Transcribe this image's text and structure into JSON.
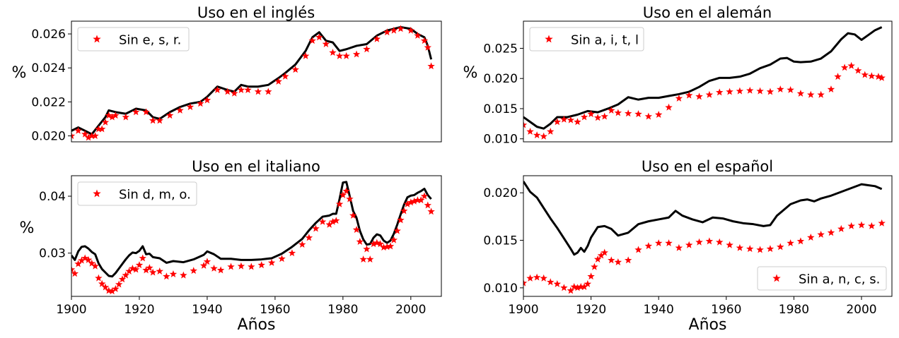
{
  "chart_data": [
    {
      "type": "line",
      "title": "Uso en el inglés",
      "ylabel": "%",
      "xlabel": "",
      "xlim": [
        1900,
        2009
      ],
      "ylim": [
        0.01965,
        0.02675
      ],
      "yticks": [
        0.02,
        0.022,
        0.024,
        0.026
      ],
      "ytick_labels": [
        "0.020",
        "0.022",
        "0.024",
        "0.026"
      ],
      "xticks": [],
      "legend": {
        "position": "top-left"
      },
      "series": [
        {
          "name": "",
          "style": "line",
          "color": "#000000",
          "x": [
            1900,
            1902,
            1904,
            1906,
            1908,
            1910,
            1911,
            1913,
            1916,
            1919,
            1922,
            1924,
            1926,
            1929,
            1932,
            1935,
            1938,
            1940,
            1943,
            1946,
            1948,
            1950,
            1952,
            1955,
            1958,
            1961,
            1963,
            1966,
            1969,
            1971,
            1973,
            1975,
            1977,
            1979,
            1981,
            1984,
            1987,
            1990,
            1993,
            1995,
            1997,
            2000,
            2002,
            2004,
            2005,
            2006
          ],
          "y": [
            0.0203,
            0.0205,
            0.0203,
            0.0201,
            0.0206,
            0.0211,
            0.0215,
            0.0214,
            0.0213,
            0.0216,
            0.0215,
            0.0211,
            0.021,
            0.0214,
            0.0217,
            0.0219,
            0.022,
            0.0223,
            0.0229,
            0.0227,
            0.0226,
            0.023,
            0.0229,
            0.0229,
            0.023,
            0.0234,
            0.0237,
            0.0242,
            0.025,
            0.0258,
            0.0261,
            0.0256,
            0.0255,
            0.025,
            0.0251,
            0.0253,
            0.0254,
            0.0259,
            0.0262,
            0.0263,
            0.0264,
            0.0263,
            0.026,
            0.0258,
            0.0253,
            0.0245
          ]
        },
        {
          "name": "Sin e, s, r.",
          "style": "star",
          "color": "#ff0000",
          "x": [
            1900,
            1902,
            1904,
            1905,
            1906,
            1907,
            1908,
            1909,
            1910,
            1911,
            1912,
            1913,
            1916,
            1919,
            1922,
            1924,
            1926,
            1929,
            1932,
            1935,
            1938,
            1940,
            1943,
            1946,
            1948,
            1950,
            1952,
            1955,
            1958,
            1961,
            1963,
            1966,
            1969,
            1971,
            1973,
            1975,
            1977,
            1979,
            1981,
            1984,
            1987,
            1990,
            1993,
            1995,
            1997,
            2000,
            2002,
            2004,
            2005,
            2006
          ],
          "y": [
            0.02,
            0.0203,
            0.0201,
            0.0199,
            0.02,
            0.02,
            0.0204,
            0.0204,
            0.0208,
            0.0212,
            0.0211,
            0.0212,
            0.0211,
            0.0214,
            0.0214,
            0.0209,
            0.0209,
            0.0212,
            0.0215,
            0.0217,
            0.0219,
            0.0221,
            0.0227,
            0.0226,
            0.0225,
            0.0227,
            0.0227,
            0.0226,
            0.0226,
            0.0232,
            0.0235,
            0.0239,
            0.0247,
            0.0256,
            0.0258,
            0.0254,
            0.0249,
            0.0247,
            0.0247,
            0.0248,
            0.0251,
            0.0257,
            0.0261,
            0.0262,
            0.0263,
            0.0262,
            0.0259,
            0.0256,
            0.0252,
            0.0241
          ]
        }
      ]
    },
    {
      "type": "line",
      "title": "Uso en el alemán",
      "ylabel": "%",
      "xlabel": "",
      "xlim": [
        1900,
        2009
      ],
      "ylim": [
        0.0095,
        0.0295
      ],
      "yticks": [
        0.01,
        0.015,
        0.02,
        0.025
      ],
      "ytick_labels": [
        "0.010",
        "0.015",
        "0.020",
        "0.025"
      ],
      "xticks": [],
      "legend": {
        "position": "top-left"
      },
      "series": [
        {
          "name": "",
          "style": "line",
          "color": "#000000",
          "x": [
            1900,
            1902,
            1904,
            1906,
            1908,
            1910,
            1913,
            1916,
            1919,
            1922,
            1925,
            1928,
            1931,
            1934,
            1937,
            1940,
            1943,
            1946,
            1949,
            1952,
            1955,
            1958,
            1961,
            1964,
            1967,
            1970,
            1973,
            1976,
            1978,
            1980,
            1982,
            1985,
            1988,
            1991,
            1994,
            1996,
            1998,
            2000,
            2002,
            2004,
            2006
          ],
          "y": [
            0.0136,
            0.0128,
            0.012,
            0.0117,
            0.0125,
            0.0136,
            0.0136,
            0.014,
            0.0146,
            0.0144,
            0.015,
            0.0157,
            0.0169,
            0.0165,
            0.0168,
            0.0168,
            0.0171,
            0.0174,
            0.0178,
            0.0186,
            0.0196,
            0.0201,
            0.0201,
            0.0203,
            0.0208,
            0.0217,
            0.0223,
            0.0233,
            0.0234,
            0.0228,
            0.0227,
            0.0228,
            0.0233,
            0.0245,
            0.0265,
            0.0275,
            0.0273,
            0.0264,
            0.0272,
            0.028,
            0.0285
          ]
        },
        {
          "name": "Sin a, i, t, l",
          "style": "star",
          "color": "#ff0000",
          "x": [
            1900,
            1902,
            1904,
            1906,
            1908,
            1910,
            1912,
            1914,
            1916,
            1918,
            1920,
            1922,
            1924,
            1926,
            1928,
            1931,
            1934,
            1937,
            1940,
            1943,
            1946,
            1949,
            1952,
            1955,
            1958,
            1961,
            1964,
            1967,
            1970,
            1973,
            1976,
            1979,
            1982,
            1985,
            1988,
            1991,
            1993,
            1995,
            1997,
            1999,
            2001,
            2003,
            2005,
            2006
          ],
          "y": [
            0.0123,
            0.0112,
            0.0106,
            0.0104,
            0.0112,
            0.0128,
            0.0132,
            0.0131,
            0.0128,
            0.0136,
            0.0141,
            0.0135,
            0.0137,
            0.0147,
            0.0143,
            0.0142,
            0.0141,
            0.0137,
            0.014,
            0.0152,
            0.0167,
            0.0172,
            0.017,
            0.0173,
            0.0177,
            0.0178,
            0.0179,
            0.018,
            0.0179,
            0.0178,
            0.0182,
            0.0181,
            0.0175,
            0.0173,
            0.0173,
            0.0182,
            0.0203,
            0.0218,
            0.0221,
            0.0213,
            0.0206,
            0.0204,
            0.0203,
            0.0201
          ]
        }
      ]
    },
    {
      "type": "line",
      "title": "Uso en el italiano",
      "ylabel": "%",
      "xlabel": "Años",
      "xlim": [
        1900,
        2009
      ],
      "ylim": [
        0.0224,
        0.0436
      ],
      "yticks": [
        0.03,
        0.04
      ],
      "ytick_labels": [
        "0.03",
        "0.04"
      ],
      "xticks": [
        1900,
        1920,
        1940,
        1960,
        1980,
        2000
      ],
      "xtick_labels": [
        "1900",
        "1920",
        "1940",
        "1960",
        "1980",
        "2000"
      ],
      "legend": {
        "position": "top-left"
      },
      "series": [
        {
          "name": "",
          "style": "line",
          "color": "#000000",
          "x": [
            1900,
            1901,
            1902,
            1903,
            1904,
            1905,
            1906,
            1907,
            1908,
            1909,
            1910,
            1911,
            1912,
            1913,
            1914,
            1915,
            1916,
            1917,
            1918,
            1919,
            1920,
            1921,
            1922,
            1923,
            1924,
            1926,
            1928,
            1930,
            1933,
            1936,
            1939,
            1940,
            1942,
            1944,
            1947,
            1950,
            1953,
            1956,
            1959,
            1962,
            1965,
            1968,
            1970,
            1972,
            1974,
            1976,
            1977,
            1978,
            1979,
            1980,
            1981,
            1982,
            1983,
            1984,
            1985,
            1986,
            1987,
            1988,
            1989,
            1990,
            1991,
            1992,
            1993,
            1994,
            1995,
            1996,
            1997,
            1998,
            1999,
            2000,
            2001,
            2002,
            2003,
            2004,
            2005,
            2006
          ],
          "y": [
            0.0296,
            0.0288,
            0.0303,
            0.0311,
            0.0312,
            0.0308,
            0.0302,
            0.0298,
            0.0282,
            0.0272,
            0.0266,
            0.026,
            0.0259,
            0.0265,
            0.0273,
            0.0281,
            0.0289,
            0.0296,
            0.0301,
            0.03,
            0.0304,
            0.0312,
            0.0298,
            0.0299,
            0.0293,
            0.0291,
            0.0283,
            0.0286,
            0.0284,
            0.0289,
            0.0297,
            0.0303,
            0.0298,
            0.029,
            0.029,
            0.0288,
            0.0288,
            0.0289,
            0.0291,
            0.0299,
            0.0311,
            0.0325,
            0.034,
            0.0353,
            0.0364,
            0.0366,
            0.0369,
            0.0369,
            0.0395,
            0.0424,
            0.0425,
            0.04,
            0.0374,
            0.0362,
            0.0339,
            0.0324,
            0.0315,
            0.0316,
            0.0327,
            0.0333,
            0.0331,
            0.0322,
            0.0318,
            0.0322,
            0.0334,
            0.035,
            0.0368,
            0.0385,
            0.0398,
            0.0401,
            0.0402,
            0.0406,
            0.0409,
            0.0413,
            0.0402,
            0.0395
          ]
        },
        {
          "name": "Sin d, m, o.",
          "style": "star",
          "color": "#ff0000",
          "x": [
            1900,
            1901,
            1902,
            1903,
            1904,
            1905,
            1906,
            1907,
            1908,
            1909,
            1910,
            1911,
            1912,
            1913,
            1914,
            1915,
            1916,
            1917,
            1918,
            1919,
            1920,
            1921,
            1922,
            1923,
            1924,
            1926,
            1928,
            1930,
            1933,
            1936,
            1939,
            1940,
            1942,
            1944,
            1947,
            1950,
            1953,
            1956,
            1959,
            1962,
            1965,
            1968,
            1970,
            1972,
            1974,
            1976,
            1977,
            1978,
            1979,
            1980,
            1981,
            1982,
            1983,
            1984,
            1985,
            1986,
            1987,
            1988,
            1989,
            1990,
            1991,
            1992,
            1993,
            1994,
            1995,
            1996,
            1997,
            1998,
            1999,
            2000,
            2001,
            2002,
            2003,
            2004,
            2005,
            2006
          ],
          "y": [
            0.0271,
            0.0264,
            0.0281,
            0.0287,
            0.0291,
            0.0288,
            0.0282,
            0.0277,
            0.0256,
            0.0246,
            0.024,
            0.0234,
            0.0233,
            0.0237,
            0.0245,
            0.0254,
            0.0261,
            0.0268,
            0.0273,
            0.0271,
            0.0279,
            0.0291,
            0.027,
            0.0274,
            0.0266,
            0.0268,
            0.0259,
            0.0263,
            0.0261,
            0.0269,
            0.0278,
            0.0285,
            0.0273,
            0.027,
            0.0276,
            0.0277,
            0.0276,
            0.0279,
            0.0283,
            0.029,
            0.03,
            0.0315,
            0.0327,
            0.0343,
            0.0355,
            0.035,
            0.0355,
            0.0357,
            0.0386,
            0.0402,
            0.0409,
            0.0395,
            0.0366,
            0.0341,
            0.032,
            0.0289,
            0.0307,
            0.0289,
            0.0316,
            0.0318,
            0.0316,
            0.031,
            0.0311,
            0.0312,
            0.0323,
            0.0339,
            0.0358,
            0.0374,
            0.0386,
            0.0389,
            0.0391,
            0.0393,
            0.0393,
            0.04,
            0.0384,
            0.0373
          ]
        }
      ]
    },
    {
      "type": "line",
      "title": "Uso en el español",
      "ylabel": "",
      "xlabel": "Años",
      "xlim": [
        1900,
        2009
      ],
      "ylim": [
        0.0091,
        0.0218
      ],
      "yticks": [
        0.01,
        0.015,
        0.02
      ],
      "ytick_labels": [
        "0.010",
        "0.015",
        "0.020"
      ],
      "xticks": [
        1900,
        1920,
        1940,
        1960,
        1980,
        2000
      ],
      "xtick_labels": [
        "1900",
        "1920",
        "1940",
        "1960",
        "1980",
        "2000"
      ],
      "legend": {
        "position": "bottom-right"
      },
      "series": [
        {
          "name": "",
          "style": "line",
          "color": "#000000",
          "x": [
            1900,
            1902,
            1904,
            1906,
            1908,
            1910,
            1912,
            1914,
            1915,
            1916,
            1917,
            1918,
            1919,
            1920,
            1922,
            1924,
            1926,
            1928,
            1931,
            1934,
            1937,
            1940,
            1943,
            1945,
            1947,
            1950,
            1953,
            1956,
            1959,
            1962,
            1965,
            1968,
            1971,
            1973,
            1975,
            1977,
            1979,
            1982,
            1984,
            1986,
            1988,
            1991,
            1994,
            1997,
            2000,
            2002,
            2004,
            2006
          ],
          "y": [
            0.0212,
            0.0201,
            0.0195,
            0.0184,
            0.0173,
            0.0163,
            0.0152,
            0.0141,
            0.0135,
            0.0137,
            0.0142,
            0.0138,
            0.0144,
            0.0153,
            0.0164,
            0.0165,
            0.0162,
            0.0155,
            0.0158,
            0.0167,
            0.017,
            0.0172,
            0.0174,
            0.0181,
            0.0176,
            0.0172,
            0.0169,
            0.0174,
            0.0173,
            0.017,
            0.0168,
            0.0167,
            0.0165,
            0.0166,
            0.0176,
            0.0182,
            0.0188,
            0.0192,
            0.0193,
            0.0191,
            0.0194,
            0.0197,
            0.0201,
            0.0205,
            0.0209,
            0.0208,
            0.0207,
            0.0204
          ]
        },
        {
          "name": "Sin a, n, c, s.",
          "style": "star",
          "color": "#ff0000",
          "x": [
            1900,
            1902,
            1904,
            1906,
            1908,
            1910,
            1912,
            1914,
            1915,
            1916,
            1917,
            1918,
            1919,
            1920,
            1921,
            1922,
            1923,
            1924,
            1926,
            1928,
            1931,
            1934,
            1937,
            1940,
            1943,
            1946,
            1949,
            1952,
            1955,
            1958,
            1961,
            1964,
            1967,
            1970,
            1973,
            1976,
            1979,
            1982,
            1985,
            1988,
            1991,
            1994,
            1997,
            2000,
            2003,
            2006
          ],
          "y": [
            0.0105,
            0.011,
            0.0111,
            0.011,
            0.0106,
            0.0104,
            0.01,
            0.0097,
            0.0101,
            0.01,
            0.0101,
            0.0101,
            0.0104,
            0.0112,
            0.0122,
            0.013,
            0.0134,
            0.0137,
            0.0129,
            0.0127,
            0.0129,
            0.014,
            0.0144,
            0.0147,
            0.0147,
            0.0142,
            0.0145,
            0.0148,
            0.0149,
            0.0148,
            0.0145,
            0.0142,
            0.0141,
            0.014,
            0.0141,
            0.0143,
            0.0147,
            0.0149,
            0.0153,
            0.0156,
            0.0158,
            0.0162,
            0.0165,
            0.0166,
            0.0165,
            0.0168
          ]
        }
      ]
    }
  ]
}
